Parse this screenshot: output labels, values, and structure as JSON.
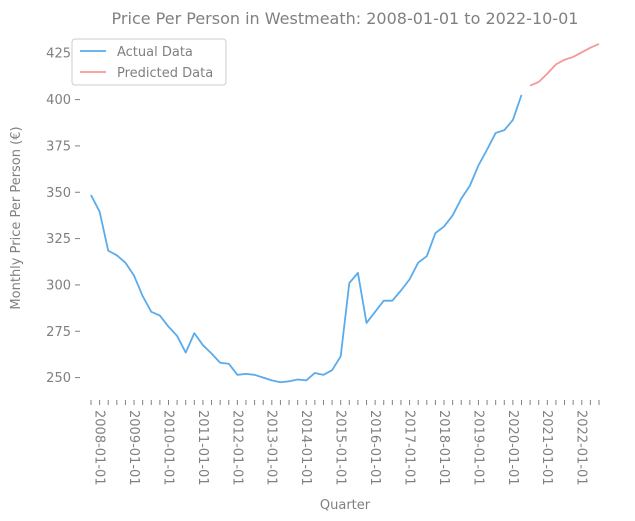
{
  "chart_data": {
    "type": "line",
    "title": "Price Per Person in Westmeath: 2008-01-01 to 2022-10-01",
    "xlabel": "Quarter",
    "ylabel": "Monthly Price Per Person (€)",
    "ylim": [
      239,
      437
    ],
    "yticks": [
      250,
      275,
      300,
      325,
      350,
      375,
      400,
      425
    ],
    "x_tick_labels": [
      "2008-01-01",
      "2009-01-01",
      "2010-01-01",
      "2011-01-01",
      "2012-01-01",
      "2013-01-01",
      "2014-01-01",
      "2015-01-01",
      "2016-01-01",
      "2017-01-01",
      "2018-01-01",
      "2019-01-01",
      "2020-01-01",
      "2021-01-01",
      "2022-01-01"
    ],
    "grid": false,
    "legend": "top-left",
    "series": [
      {
        "name": "Actual Data",
        "color": "#5aabec",
        "start_quarter": 0,
        "values": [
          348.5,
          339.5,
          318.5,
          316,
          312,
          305,
          294,
          285.5,
          283.5,
          277.5,
          272.5,
          263.5,
          274,
          267.5,
          263,
          258,
          257.5,
          251.5,
          252,
          251.5,
          250,
          248.5,
          247.5,
          248,
          249,
          248.5,
          252.5,
          251.5,
          254,
          261.5,
          301,
          306.5,
          279.5,
          285.5,
          291.5,
          291.5,
          297,
          303,
          312,
          315.5,
          328,
          331.5,
          337.5,
          346.5,
          353.5,
          364.5,
          373,
          382,
          383.5,
          389,
          402.5
        ]
      },
      {
        "name": "Predicted Data",
        "color": "#f59899",
        "start_quarter": 51,
        "values": [
          407.5,
          409.5,
          414,
          419,
          421.5,
          423,
          425.5,
          428,
          430
        ]
      }
    ]
  }
}
